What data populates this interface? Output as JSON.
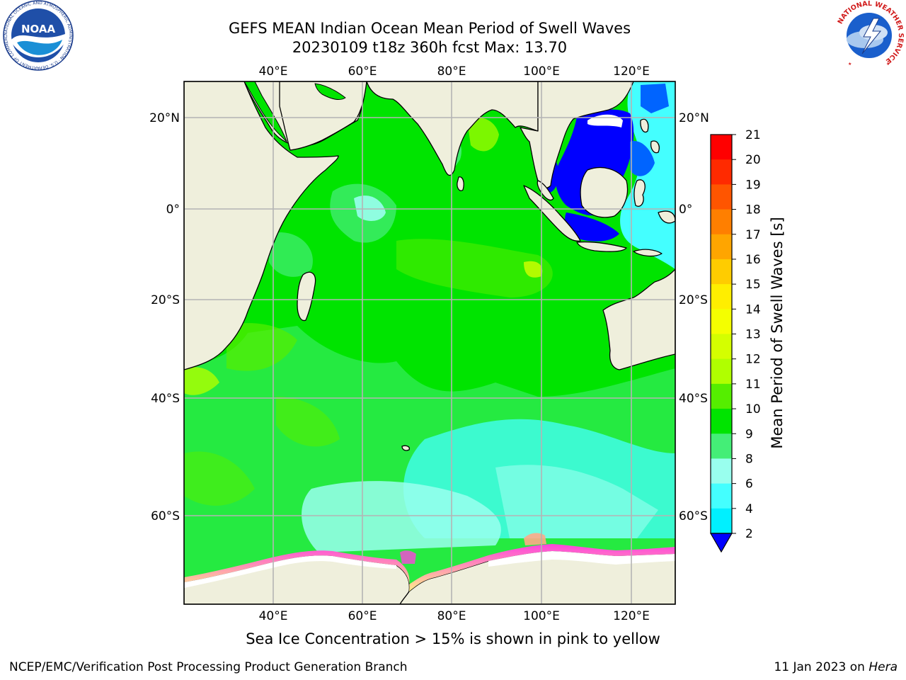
{
  "title": {
    "line1": "GEFS MEAN Indian Ocean Mean Period of Swell Waves",
    "line2": "20230109 t18z 360h fcst   Max: 13.70"
  },
  "map": {
    "lon_ticks": [
      "40°E",
      "60°E",
      "80°E",
      "100°E",
      "120°E"
    ],
    "lat_ticks": [
      "20°N",
      "0°",
      "20°S",
      "40°S",
      "60°S"
    ],
    "extent": {
      "lon_min": 20,
      "lon_max": 130,
      "lat_min": -74,
      "lat_max": 28
    },
    "colors": {
      "land": "#efefdc",
      "grid": "#b4b4b4",
      "coast": "#000000"
    }
  },
  "colorbar": {
    "label": "Mean Period of Swell Waves [s]",
    "ticks": [
      "21",
      "20",
      "19",
      "18",
      "17",
      "16",
      "15",
      "14",
      "13",
      "12",
      "11",
      "10",
      "9",
      "8",
      "6",
      "4",
      "2"
    ],
    "colors": [
      "#ff0000",
      "#ff2a00",
      "#ff5500",
      "#ff7f00",
      "#ffa500",
      "#ffcc00",
      "#ffee00",
      "#f4ff00",
      "#d4ff00",
      "#b0ff00",
      "#55ee00",
      "#00e400",
      "#44ee77",
      "#99ffee",
      "#44ffff",
      "#00f0ff",
      "#0096ff"
    ],
    "under_color": "#0000ff"
  },
  "legend_note": "Sea Ice Concentration > 15% is shown in pink to yellow",
  "footer": {
    "left": "NCEP/EMC/Verification Post Processing Product Generation Branch",
    "date": "11 Jan 2023 on ",
    "machine": "Hera"
  },
  "logos": {
    "noaa_text": "NOAA",
    "noaa_ring": "NATIONAL OCEANIC AND ATMOSPHERIC ADMINISTRATION · U.S. DEPARTMENT OF COMMERCE",
    "nws_ring": "NATIONAL WEATHER SERVICE"
  }
}
